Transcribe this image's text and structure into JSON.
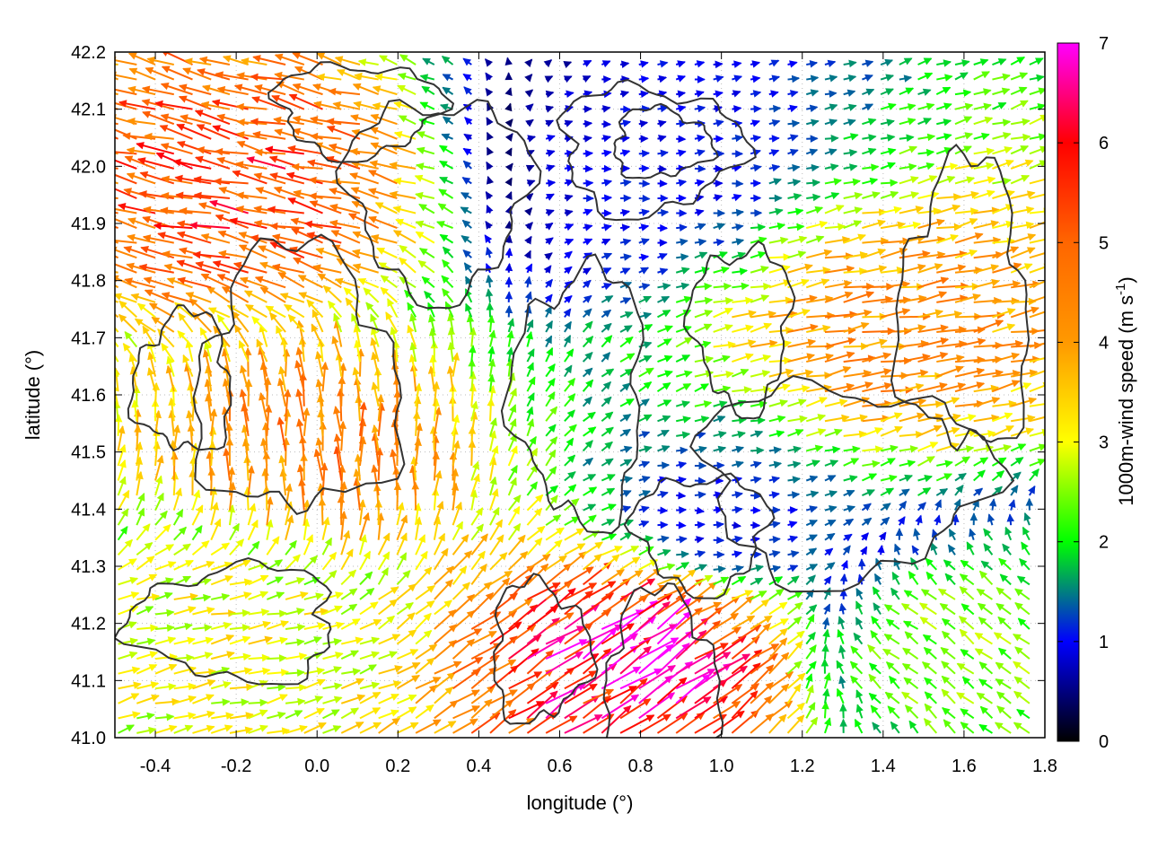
{
  "chart_data": {
    "type": "vector-field",
    "xlabel": "longitude (°)",
    "ylabel": "latitude (°)",
    "xlim": [
      -0.5,
      1.8
    ],
    "ylim": [
      41.0,
      42.2
    ],
    "x_ticks": [
      "-0.4",
      "-0.2",
      "0.0",
      "0.2",
      "0.4",
      "0.6",
      "0.8",
      "1.0",
      "1.2",
      "1.4",
      "1.6",
      "1.8"
    ],
    "x_tick_values": [
      -0.4,
      -0.2,
      0.0,
      0.2,
      0.4,
      0.6,
      0.8,
      1.0,
      1.2,
      1.4,
      1.6,
      1.8
    ],
    "y_ticks": [
      "41.0",
      "41.1",
      "41.2",
      "41.3",
      "41.4",
      "41.5",
      "41.6",
      "41.7",
      "41.8",
      "41.9",
      "42.0",
      "42.1",
      "42.2"
    ],
    "y_tick_values": [
      41.0,
      41.1,
      41.2,
      41.3,
      41.4,
      41.5,
      41.6,
      41.7,
      41.8,
      41.9,
      42.0,
      42.1,
      42.2
    ],
    "grid": true,
    "colorbar": {
      "label": "1000m-wind speed",
      "unit_prefix": "(m s",
      "unit_exponent": "-1",
      "unit_suffix": ")",
      "range": [
        0,
        7
      ],
      "ticks": [
        "0",
        "1",
        "2",
        "3",
        "4",
        "5",
        "6",
        "7"
      ],
      "tick_values": [
        0,
        1,
        2,
        3,
        4,
        5,
        6,
        7
      ],
      "colors": [
        "#000000",
        "#0000ff",
        "#00ff00",
        "#ffff00",
        "#ff9900",
        "#ff6600",
        "#ff0000",
        "#ff00ff"
      ]
    },
    "wind_regimes": [
      {
        "region": "northwest",
        "lon_range": [
          -0.5,
          0.2
        ],
        "lat_range": [
          41.7,
          42.2
        ],
        "u": -5.2,
        "v": 1.2
      },
      {
        "region": "upper-center",
        "lon_range": [
          0.55,
          1.1
        ],
        "lat_range": [
          41.85,
          42.15
        ],
        "u": 1.0,
        "v": 0.1
      },
      {
        "region": "east-center",
        "lon_range": [
          1.0,
          1.8
        ],
        "lat_range": [
          41.5,
          41.9
        ],
        "u": 4.2,
        "v": 0.8
      },
      {
        "region": "west-south",
        "lon_range": [
          -0.5,
          0.1
        ],
        "lat_range": [
          41.0,
          41.35
        ],
        "u": 3.0,
        "v": 0.6
      },
      {
        "region": "center-west",
        "lon_range": [
          -0.3,
          0.3
        ],
        "lat_range": [
          41.35,
          41.6
        ],
        "u": -0.2,
        "v": 4.5
      },
      {
        "region": "southeast-jet",
        "lon_range": [
          0.35,
          1.2
        ],
        "lat_range": [
          41.0,
          41.3
        ],
        "u": 5.3,
        "v": 3.6
      },
      {
        "region": "east-lowland",
        "lon_range": [
          0.85,
          1.1
        ],
        "lat_range": [
          41.3,
          41.45
        ],
        "u": 1.0,
        "v": 0.0
      },
      {
        "region": "far-southeast",
        "lon_range": [
          1.4,
          1.8
        ],
        "lat_range": [
          41.0,
          41.3
        ],
        "u": -2.0,
        "v": 1.5
      }
    ],
    "terrain_contours": "several closed black contour lines tracing orography across the domain"
  }
}
